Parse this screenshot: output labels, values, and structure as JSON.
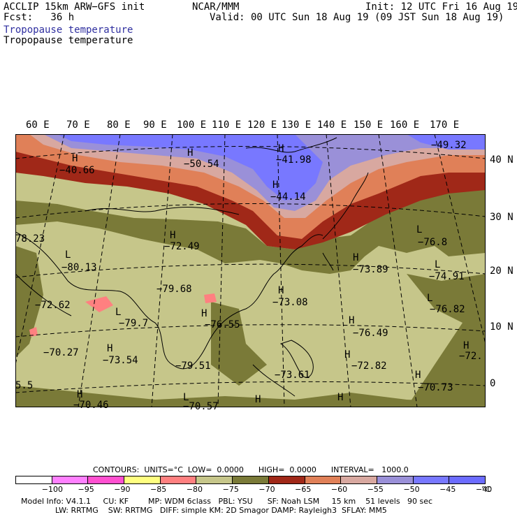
{
  "header": {
    "model": "ACCLIP 15km ARW−GFS init",
    "fcst": "Fcst:   36 h",
    "center": "NCAR/MMM",
    "init": "Init: 12 UTC Fri 16 Aug 19",
    "valid": "Valid: 00 UTC Sun 18 Aug 19 (09 JST Sun 18 Aug 19)",
    "field_line1": "Tropopause temperature",
    "field_line2": "Tropopause temperature"
  },
  "lon_labels": [
    "60 E",
    "70 E",
    "80 E",
    "90 E",
    "100 E",
    "110 E",
    "120 E",
    "130 E",
    "140 E",
    "150 E",
    "160 E",
    "170 E"
  ],
  "lat_labels": [
    "40 N",
    "30 N",
    "20 N",
    "10 N",
    "0"
  ],
  "map_labels": [
    {
      "text": "H"
    },
    {
      "text": "−40.66"
    },
    {
      "text": "H"
    },
    {
      "text": "−50.54"
    },
    {
      "text": "H"
    },
    {
      "text": "−41.98"
    },
    {
      "text": "H"
    },
    {
      "text": "−44.14"
    },
    {
      "text": "−49.32"
    },
    {
      "text": "78.23"
    },
    {
      "text": "H"
    },
    {
      "text": "−72.49"
    },
    {
      "text": "L"
    },
    {
      "text": "−80.13"
    },
    {
      "text": "−79.68"
    },
    {
      "text": "−72.62"
    },
    {
      "text": "L"
    },
    {
      "text": "−79.7"
    },
    {
      "text": "H"
    },
    {
      "text": "−76.55"
    },
    {
      "text": "H"
    },
    {
      "text": "−73.08"
    },
    {
      "text": "H"
    },
    {
      "text": "−73.89"
    },
    {
      "text": "L"
    },
    {
      "text": "−76.8"
    },
    {
      "text": "L"
    },
    {
      "text": "−74.91"
    },
    {
      "text": "L"
    },
    {
      "text": "−76.82"
    },
    {
      "text": "H"
    },
    {
      "text": "−76.49"
    },
    {
      "text": "−70.27"
    },
    {
      "text": "H"
    },
    {
      "text": "−73.54"
    },
    {
      "text": "−79.51"
    },
    {
      "text": "−73.61"
    },
    {
      "text": "H"
    },
    {
      "text": "−72.82"
    },
    {
      "text": "H"
    },
    {
      "text": "−70.73"
    },
    {
      "text": "H"
    },
    {
      "text": "−72."
    },
    {
      "text": "5.5"
    },
    {
      "text": "H"
    },
    {
      "text": "−70.46"
    },
    {
      "text": "L"
    },
    {
      "text": "−70.57"
    },
    {
      "text": "H"
    },
    {
      "text": "H"
    }
  ],
  "contour_info": {
    "contours": "CONTOURS:  UNITS=°C  LOW=  0.0000      HIGH=  0.0000      INTERVAL=   1000.0"
  },
  "colorbar": {
    "colors": [
      "#ffffff",
      "#ff80ff",
      "#ff50d0",
      "#ffff80",
      "#ff8080",
      "#c6c68a",
      "#7a7a38",
      "#a02818",
      "#e08058",
      "#d8a8a0",
      "#9a90d8",
      "#7878ff",
      "#6c6cff"
    ],
    "labels": [
      "−100",
      "−95",
      "−90",
      "−85",
      "−80",
      "−75",
      "−70",
      "−65",
      "−60",
      "−55",
      "−50",
      "−45",
      "−40",
      "°C"
    ]
  },
  "model_info": {
    "line1": "Model Info: V4.1.1     CU: KF        MP: WDM 6class   PBL: YSU      SF: Noah LSM     15 km    51 levels   90 sec",
    "line2": "              LW: RRTMG    SW: RRTMG   DIFF: simple KM: 2D Smagor DAMP: Rayleigh3  SFLAY: MM5"
  }
}
